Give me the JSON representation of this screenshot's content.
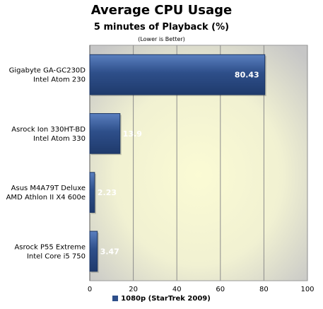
{
  "chart_data": {
    "type": "bar",
    "orientation": "horizontal",
    "title": "Average CPU Usage",
    "subtitle": "5 minutes of Playback (%)",
    "note": "(Lower is Better)",
    "categories": [
      [
        "Gigabyte GA-GC230D",
        "Intel Atom 230"
      ],
      [
        "Asrock Ion 330HT-BD",
        "Intel Atom 330"
      ],
      [
        "Asus M4A79T Deluxe",
        "AMD Athlon II X4 600e"
      ],
      [
        "Asrock P55 Extreme",
        "Intel Core i5 750"
      ]
    ],
    "series": [
      {
        "name": "1080p (StarTrek 2009)",
        "values": [
          80.43,
          13.9,
          2.23,
          3.47
        ]
      }
    ],
    "value_labels": [
      "80.43",
      "13.9",
      "2.23",
      "3.47"
    ],
    "xlim": [
      0,
      100
    ],
    "xticks": [
      0,
      20,
      40,
      60,
      80,
      100
    ],
    "grid": true,
    "legend_position": "bottom",
    "colors": {
      "bar": "#2e4f8a",
      "bar_light": "#5a7fbf",
      "plot_bg_center": "#fbfbd4",
      "plot_bg_edge": "#c9c9c9"
    }
  }
}
